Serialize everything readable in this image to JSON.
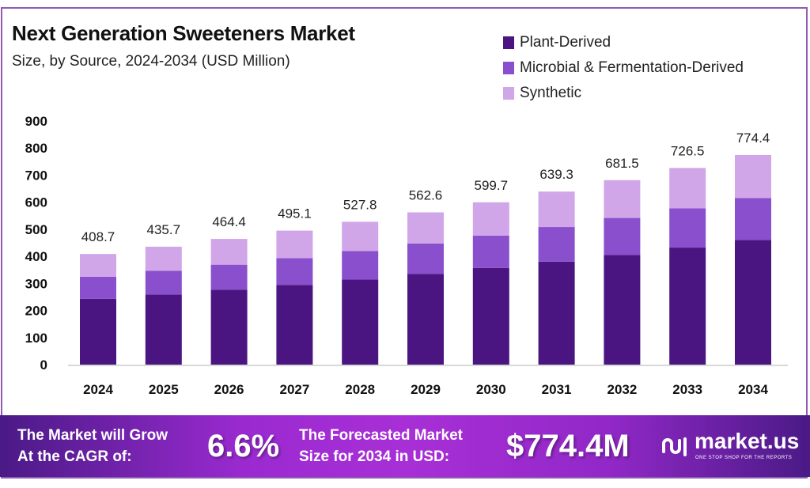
{
  "chart_data": {
    "type": "bar",
    "stacked": true,
    "title": "Next Generation Sweeteners Market",
    "subtitle": "Size, by Source, 2024-2034 (USD Million)",
    "categories": [
      "2024",
      "2025",
      "2026",
      "2027",
      "2028",
      "2029",
      "2030",
      "2031",
      "2032",
      "2033",
      "2034"
    ],
    "series": [
      {
        "name": "Plant-Derived",
        "color": "#4a1580",
        "values": [
          243.2,
          259.2,
          276.3,
          294.6,
          314.0,
          334.7,
          356.8,
          380.4,
          405.5,
          432.3,
          460.8
        ]
      },
      {
        "name": "Microbial & Fermentation-Derived",
        "color": "#8a4fcc",
        "values": [
          81.7,
          87.1,
          92.9,
          99.0,
          105.6,
          112.5,
          119.9,
          127.9,
          136.3,
          145.3,
          154.9
        ]
      },
      {
        "name": "Synthetic",
        "color": "#d0a6e8",
        "values": [
          83.8,
          89.4,
          95.2,
          101.5,
          108.2,
          115.4,
          123.0,
          131.0,
          139.7,
          148.9,
          158.7
        ]
      }
    ],
    "totals": [
      "408.7",
      "435.7",
      "464.4",
      "495.1",
      "527.8",
      "562.6",
      "599.7",
      "639.3",
      "681.5",
      "726.5",
      "774.4"
    ],
    "yticks": [
      0,
      100,
      200,
      300,
      400,
      500,
      600,
      700,
      800,
      900
    ],
    "ylim": [
      0,
      900
    ],
    "grid": false,
    "legend": "top-right"
  },
  "banner": {
    "cagr_label_1": "The Market will Grow",
    "cagr_label_2": "At the CAGR of:",
    "cagr_value": "6.6%",
    "forecast_label_1": "The Forecasted Market",
    "forecast_label_2": "Size for 2034 in USD:",
    "forecast_value": "$774.4M",
    "logo_name": "market.us",
    "logo_tagline": "ONE STOP SHOP FOR THE REPORTS"
  }
}
